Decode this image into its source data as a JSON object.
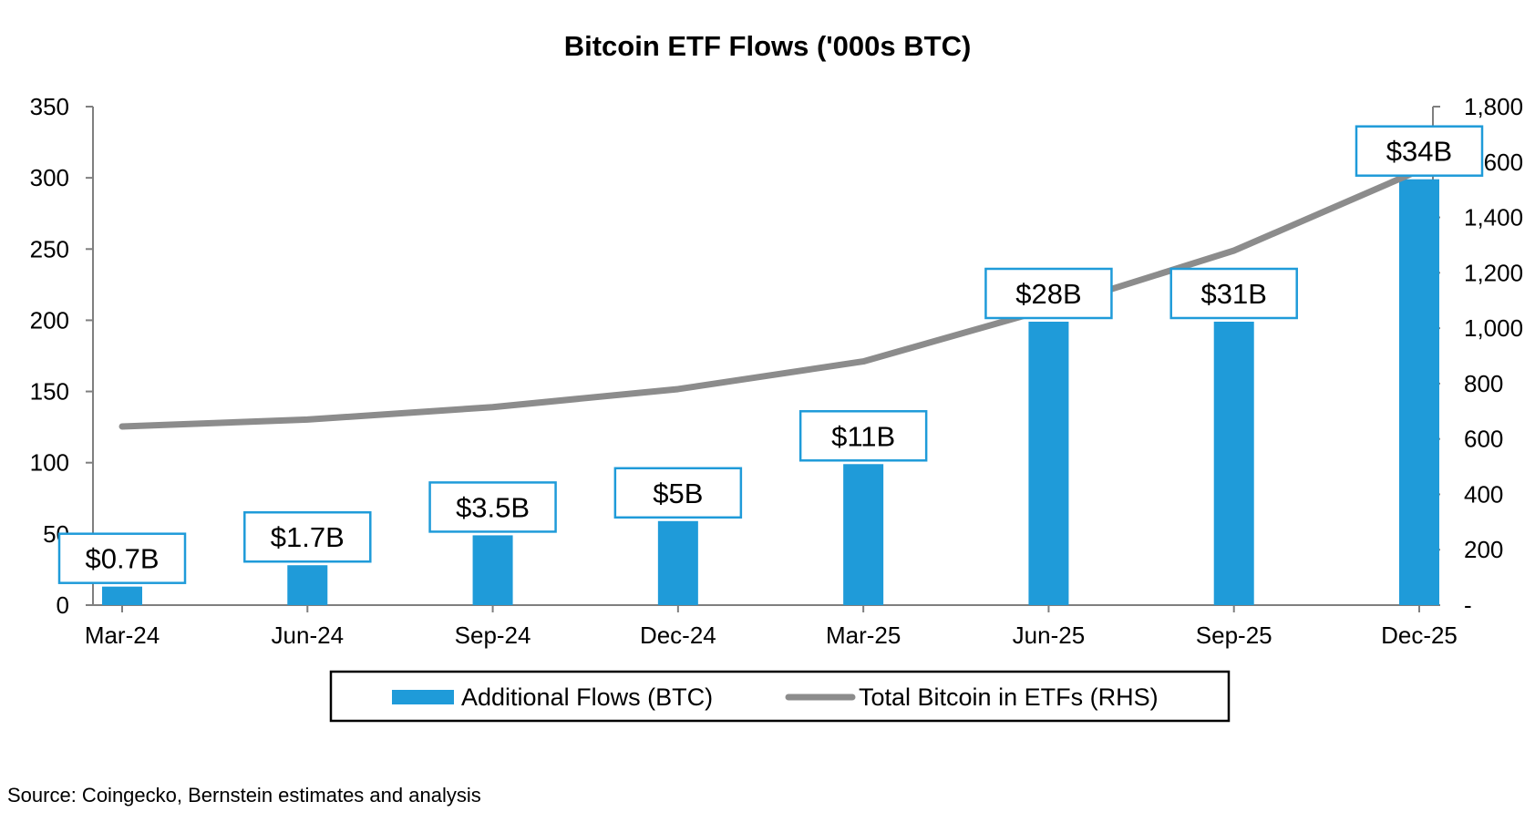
{
  "title": "Bitcoin ETF Flows ('000s BTC)",
  "source": "Source: Coingecko, Bernstein estimates and analysis",
  "colors": {
    "bar": "#1f9bd9",
    "line": "#8c8c8c",
    "axis": "#7f7f7f",
    "label_border": "#1f9bd9"
  },
  "chart_data": {
    "type": "bar",
    "title": "Bitcoin ETF Flows ('000s BTC)",
    "categories": [
      "Mar-24",
      "Jun-24",
      "Sep-24",
      "Dec-24",
      "Mar-25",
      "Jun-25",
      "Sep-25",
      "Dec-25"
    ],
    "series": [
      {
        "name": "Additional Flows (BTC)",
        "type": "bar",
        "axis": "left",
        "values": [
          13,
          28,
          49,
          59,
          99,
          199,
          199,
          299
        ]
      },
      {
        "name": "Total Bitcoin in ETFs (RHS)",
        "type": "line",
        "axis": "right",
        "values": [
          645,
          670,
          715,
          780,
          880,
          1070,
          1280,
          1570
        ]
      }
    ],
    "data_labels": [
      "$0.7B",
      "$1.7B",
      "$3.5B",
      "$5B",
      "$11B",
      "$28B",
      "$31B",
      "$34B"
    ],
    "left_axis": {
      "min": 0,
      "max": 350,
      "ticks": [
        "0",
        "50",
        "100",
        "150",
        "200",
        "250",
        "300",
        "350"
      ]
    },
    "right_axis": {
      "min": 0,
      "max": 1800,
      "ticks": [
        "-",
        "200",
        "400",
        "600",
        "800",
        "1,000",
        "1,200",
        "1,400",
        "1,600",
        "1,800"
      ]
    },
    "legend_position": "bottom",
    "grid": false
  }
}
